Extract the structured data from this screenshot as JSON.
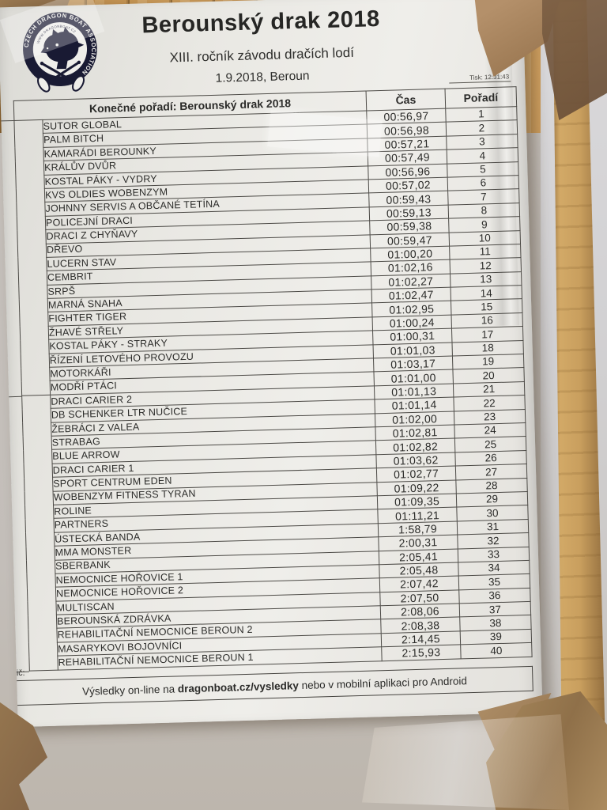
{
  "page": {
    "title": "Berounský drak 2018",
    "subtitle": "XIII. ročník závodu dračích lodí",
    "date_location": "1.9.2018, Beroun",
    "print_note": "Tisk: 12:31:43",
    "margin_note": "ič:"
  },
  "logo": {
    "ring_text": "CZECH DRAGON BOAT ASSOCIATION",
    "arc_text": "WWW.DRAGONBOAT.CZ"
  },
  "table": {
    "header": {
      "group": "Konečné pořadí: Berounský drak 2018",
      "time": "Čas",
      "rank": "Pořadí"
    },
    "rows": [
      {
        "name": "SUTOR GLOBAL",
        "time": "00:56,97",
        "rank": "1"
      },
      {
        "name": "PALM BITCH",
        "time": "00:56,98",
        "rank": "2"
      },
      {
        "name": "KAMARÁDI BEROUNKY",
        "time": "00:57,21",
        "rank": "3"
      },
      {
        "name": "KRÁLŮV DVŮR",
        "time": "00:57,49",
        "rank": "4"
      },
      {
        "name": "KOSTAL PÁKY - VYDRY",
        "time": "00:56,96",
        "rank": "5"
      },
      {
        "name": "KVS OLDIES WOBENZYM",
        "time": "00:57,02",
        "rank": "6"
      },
      {
        "name": "JOHNNY SERVIS A OBČANÉ TETÍNA",
        "time": "00:59,43",
        "rank": "7"
      },
      {
        "name": "POLICEJNÍ DRACI",
        "time": "00:59,13",
        "rank": "8"
      },
      {
        "name": "DRACI Z CHYŇAVY",
        "time": "00:59,38",
        "rank": "9"
      },
      {
        "name": "DŘEVO",
        "time": "00:59,47",
        "rank": "10"
      },
      {
        "name": "LUCERN STAV",
        "time": "01:00,20",
        "rank": "11"
      },
      {
        "name": "CEMBRIT",
        "time": "01:02,16",
        "rank": "12"
      },
      {
        "name": "SRPŠ",
        "time": "01:02,27",
        "rank": "13"
      },
      {
        "name": "MARNÁ SNAHA",
        "time": "01:02,47",
        "rank": "14"
      },
      {
        "name": "FIGHTER TIGER",
        "time": "01:02,95",
        "rank": "15"
      },
      {
        "name": "ŽHAVÉ STŘELY",
        "time": "01:00,24",
        "rank": "16"
      },
      {
        "name": "KOSTAL PÁKY - STRAKY",
        "time": "01:00,31",
        "rank": "17"
      },
      {
        "name": "ŘÍZENÍ LETOVÉHO PROVOZU",
        "time": "01:01,03",
        "rank": "18"
      },
      {
        "name": "MOTORKÁŘI",
        "time": "01:03,17",
        "rank": "19"
      },
      {
        "name": "MODŘÍ PTÁCI",
        "time": "01:01,00",
        "rank": "20"
      },
      {
        "name": "DRACI CARIER 2",
        "time": "01:01,13",
        "rank": "21"
      },
      {
        "name": "DB SCHENKER LTR NUČICE",
        "time": "01:01,14",
        "rank": "22"
      },
      {
        "name": "ŽEBRÁCI Z VALEA",
        "time": "01:02,00",
        "rank": "23"
      },
      {
        "name": "STRABAG",
        "time": "01:02,81",
        "rank": "24"
      },
      {
        "name": "BLUE ARROW",
        "time": "01:02,82",
        "rank": "25"
      },
      {
        "name": "DRACI CARIER 1",
        "time": "01:03,62",
        "rank": "26"
      },
      {
        "name": "SPORT CENTRUM EDEN",
        "time": "01:02,77",
        "rank": "27"
      },
      {
        "name": "WOBENZYM FITNESS TYRAN",
        "time": "01:09,22",
        "rank": "28"
      },
      {
        "name": "ROLINE",
        "time": "01:09,35",
        "rank": "29"
      },
      {
        "name": "PARTNERS",
        "time": "01:11,21",
        "rank": "30"
      },
      {
        "name": "ÚSTECKÁ BANDA",
        "time": "1:58,79",
        "rank": "31"
      },
      {
        "name": "MMA MONSTER",
        "time": "2:00,31",
        "rank": "32"
      },
      {
        "name": "SBERBANK",
        "time": "2:05,41",
        "rank": "33"
      },
      {
        "name": "NEMOCNICE HOŘOVICE 1",
        "time": "2:05,48",
        "rank": "34"
      },
      {
        "name": "NEMOCNICE HOŘOVICE 2",
        "time": "2:07,42",
        "rank": "35"
      },
      {
        "name": "MULTISCAN",
        "time": "2:07,50",
        "rank": "36"
      },
      {
        "name": "BEROUNSKÁ ZDRÁVKA",
        "time": "2:08,06",
        "rank": "37"
      },
      {
        "name": "REHABILITAČNÍ NEMOCNICE BEROUN 2",
        "time": "2:08,38",
        "rank": "38"
      },
      {
        "name": "MASARYKOVI BOJOVNÍCI",
        "time": "2:14,45",
        "rank": "39"
      },
      {
        "name": "REHABILITAČNÍ NEMOCNICE BEROUN 1",
        "time": "2:15,93",
        "rank": "40"
      }
    ]
  },
  "footer": {
    "prefix": "Výsledky on-line na ",
    "highlight": "dragonboat.cz/vysledky",
    "suffix": " nebo v mobilní aplikaci pro Android"
  },
  "colors": {
    "ink": "#2b2b29",
    "paper": "#e9e8e3",
    "wood": "#c99f5e",
    "tape": "#a98a5e",
    "badge": "#191a33"
  }
}
